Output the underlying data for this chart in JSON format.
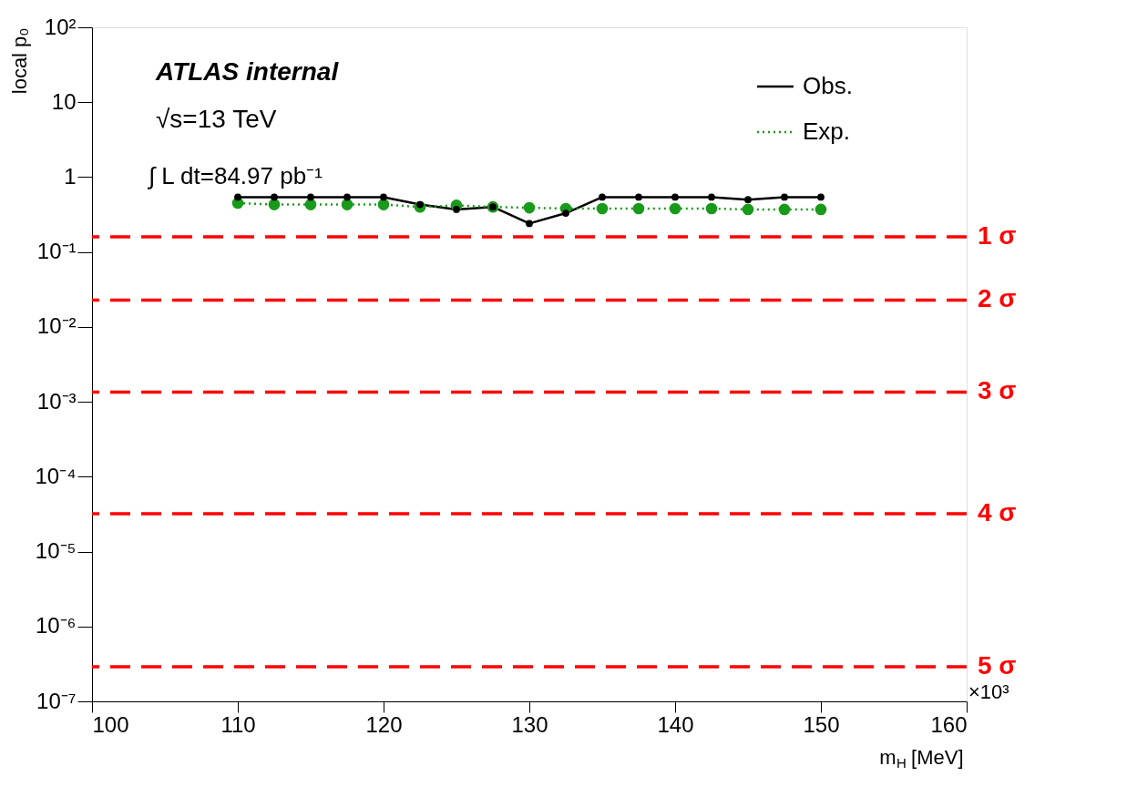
{
  "chart_data": {
    "type": "line",
    "xlabel": "m$_{H}$ [MeV]",
    "ylabel": "local p₀",
    "annotations": [
      "ATLAS internal",
      "√s=13 TeV",
      "∫ L dt=84.97 pb⁻¹",
      "×10³"
    ],
    "x": [
      110,
      112.5,
      115,
      117.5,
      120,
      122.5,
      125,
      127.5,
      130,
      132.5,
      135,
      137.5,
      140,
      142.5,
      145,
      147.5,
      150
    ],
    "series": [
      {
        "name": "Obs.",
        "color": "#000000",
        "line_style": "solid",
        "values": [
          0.54,
          0.54,
          0.54,
          0.54,
          0.54,
          0.43,
          0.37,
          0.4,
          0.24,
          0.33,
          0.54,
          0.54,
          0.54,
          0.54,
          0.5,
          0.54,
          0.54
        ]
      },
      {
        "name": "Exp.",
        "color": "#1a9a1a",
        "line_style": "dotted",
        "values": [
          0.45,
          0.43,
          0.43,
          0.43,
          0.43,
          0.4,
          0.42,
          0.4,
          0.39,
          0.38,
          0.38,
          0.38,
          0.38,
          0.38,
          0.37,
          0.37,
          0.37
        ]
      }
    ],
    "marker": "circle",
    "log": "y",
    "xlim": [
      100,
      160
    ],
    "xticks": [
      100,
      110,
      120,
      130,
      140,
      150,
      160
    ],
    "ylim": [
      1e-07,
      100
    ],
    "yticks": [
      {
        "value": 1e-07,
        "label": "10⁻⁷"
      },
      {
        "value": 1e-06,
        "label": "10⁻⁶"
      },
      {
        "value": 1e-05,
        "label": "10⁻⁵"
      },
      {
        "value": 0.0001,
        "label": "10⁻⁴"
      },
      {
        "value": 0.001,
        "label": "10⁻³"
      },
      {
        "value": 0.01,
        "label": "10⁻²"
      },
      {
        "value": 0.1,
        "label": "10⁻¹"
      },
      1,
      10,
      {
        "value": 100,
        "label": "10²"
      }
    ],
    "ref_lines": [
      {
        "axis": "y",
        "value": 0.159,
        "label": "1 σ",
        "color": "#ff0000",
        "line_style": "dashed"
      },
      {
        "axis": "y",
        "value": 0.0228,
        "label": "2 σ",
        "color": "#ff0000",
        "line_style": "dashed"
      },
      {
        "axis": "y",
        "value": 0.00135,
        "label": "3 σ",
        "color": "#ff0000",
        "line_style": "dashed"
      },
      {
        "axis": "y",
        "value": 3.2e-05,
        "label": "4 σ",
        "color": "#ff0000",
        "line_style": "dashed"
      },
      {
        "axis": "y",
        "value": 2.9e-07,
        "label": "5 σ",
        "color": "#ff0000",
        "line_style": "dashed"
      }
    ],
    "grid": false,
    "legend": "top right"
  }
}
